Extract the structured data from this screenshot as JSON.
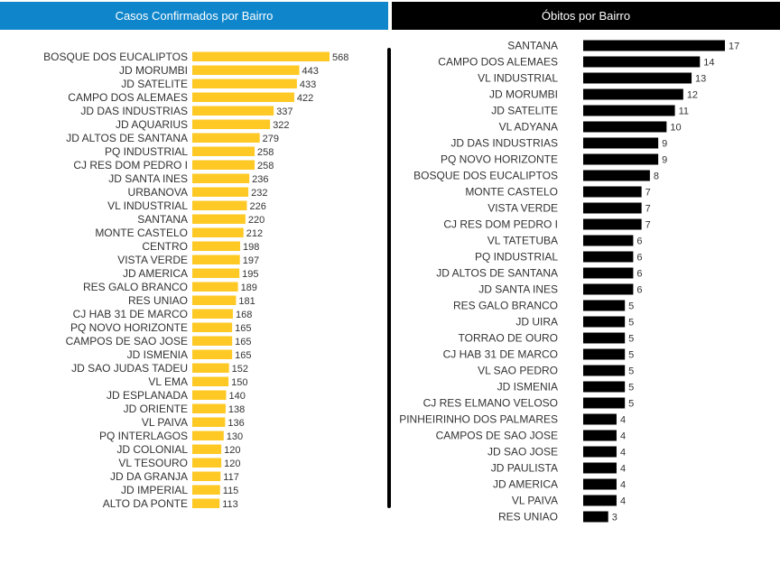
{
  "chart_data": [
    {
      "type": "bar",
      "orientation": "horizontal",
      "title": "Casos Confirmados por Bairro",
      "color": "#ffc925",
      "header_color": "#0f86cc",
      "categories": [
        "BOSQUE DOS EUCALIPTOS",
        "JD MORUMBI",
        "JD SATELITE",
        "CAMPO DOS ALEMAES",
        "JD DAS INDUSTRIAS",
        "JD AQUARIUS",
        "JD ALTOS DE SANTANA",
        "PQ INDUSTRIAL",
        "CJ RES DOM PEDRO I",
        "JD SANTA INES",
        "URBANOVA",
        "VL INDUSTRIAL",
        "SANTANA",
        "MONTE CASTELO",
        "CENTRO",
        "VISTA VERDE",
        "JD AMERICA",
        "RES GALO BRANCO",
        "RES UNIAO",
        "CJ HAB 31 DE MARCO",
        "PQ NOVO HORIZONTE",
        "CAMPOS DE SAO JOSE",
        "JD ISMENIA",
        "JD SAO JUDAS TADEU",
        "VL EMA",
        "JD ESPLANADA",
        "JD ORIENTE",
        "VL PAIVA",
        "PQ INTERLAGOS",
        "JD COLONIAL",
        "VL TESOURO",
        "JD DA GRANJA",
        "JD IMPERIAL",
        "ALTO DA PONTE"
      ],
      "values": [
        568,
        443,
        433,
        422,
        337,
        322,
        279,
        258,
        258,
        236,
        232,
        226,
        220,
        212,
        198,
        197,
        195,
        189,
        181,
        168,
        165,
        165,
        165,
        152,
        150,
        140,
        138,
        136,
        130,
        120,
        120,
        117,
        115,
        113
      ]
    },
    {
      "type": "bar",
      "orientation": "horizontal",
      "title": "Óbitos por Bairro",
      "color": "#000000",
      "header_color": "#000000",
      "categories": [
        "SANTANA",
        "CAMPO DOS ALEMAES",
        "VL INDUSTRIAL",
        "JD MORUMBI",
        "JD SATELITE",
        "VL ADYANA",
        "JD DAS INDUSTRIAS",
        "PQ NOVO HORIZONTE",
        "BOSQUE DOS EUCALIPTOS",
        "MONTE CASTELO",
        "VISTA VERDE",
        "CJ RES DOM PEDRO I",
        "VL TATETUBA",
        "PQ INDUSTRIAL",
        "JD ALTOS DE SANTANA",
        "JD SANTA INES",
        "RES GALO BRANCO",
        "JD UIRA",
        "TORRAO DE OURO",
        "CJ HAB 31 DE MARCO",
        "VL SAO PEDRO",
        "JD ISMENIA",
        "CJ RES ELMANO VELOSO",
        "PINHEIRINHO DOS PALMARES",
        "CAMPOS DE SAO JOSE",
        "JD SAO JOSE",
        "JD PAULISTA",
        "JD AMERICA",
        "VL PAIVA",
        "RES UNIAO"
      ],
      "values": [
        17,
        14,
        13,
        12,
        11,
        10,
        9,
        9,
        8,
        7,
        7,
        7,
        6,
        6,
        6,
        6,
        5,
        5,
        5,
        5,
        5,
        5,
        5,
        4,
        4,
        4,
        4,
        4,
        4,
        3
      ]
    }
  ]
}
